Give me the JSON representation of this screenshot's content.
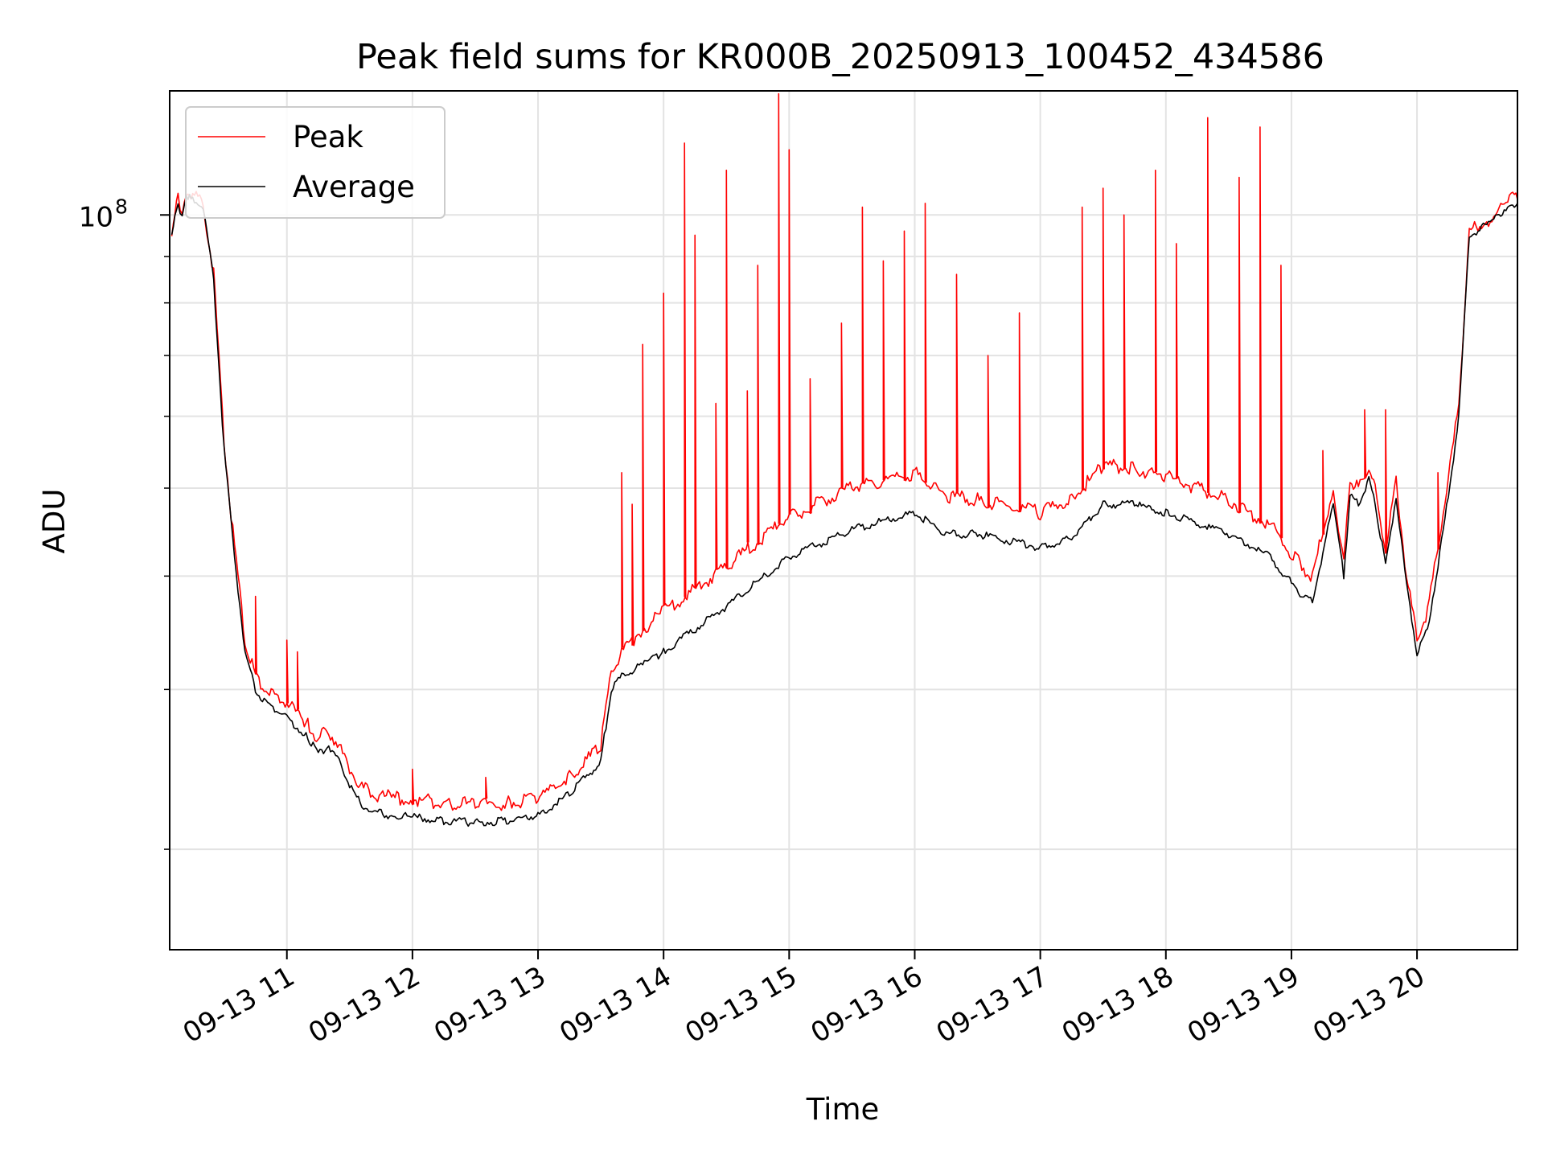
{
  "chart_data": {
    "type": "line",
    "title": "Peak field sums for KR000B_20250913_100452_434586",
    "xlabel": "Time",
    "ylabel": "ADU",
    "x_scale": "time",
    "y_scale": "log",
    "xlim": [
      "2025-09-13 10:04",
      "2025-09-13 20:48"
    ],
    "ylim": [
      15500000,
      137000000
    ],
    "x_tick_labels": [
      "09-13 11",
      "09-13 12",
      "09-13 13",
      "09-13 14",
      "09-13 15",
      "09-13 16",
      "09-13 17",
      "09-13 18",
      "09-13 19",
      "09-13 20"
    ],
    "x_tick_values": [
      "2025-09-13 11:00",
      "2025-09-13 12:00",
      "2025-09-13 13:00",
      "2025-09-13 14:00",
      "2025-09-13 15:00",
      "2025-09-13 16:00",
      "2025-09-13 17:00",
      "2025-09-13 18:00",
      "2025-09-13 19:00",
      "2025-09-13 20:00"
    ],
    "y_major_ticks": [
      {
        "value": 100000000,
        "base": "10",
        "exp": "8"
      }
    ],
    "y_minor_ticks": [
      20000000,
      30000000,
      40000000,
      50000000,
      60000000,
      70000000,
      80000000,
      90000000
    ],
    "grid": true,
    "legend_position": "top-left",
    "colors": {
      "Peak": "#ff0000",
      "Average": "#000000"
    },
    "series": [
      {
        "name": "Average",
        "x": [
          "2025-09-13 10:05",
          "2025-09-13 10:08",
          "2025-09-13 10:10",
          "2025-09-13 10:12",
          "2025-09-13 10:15",
          "2025-09-13 10:20",
          "2025-09-13 10:25",
          "2025-09-13 10:30",
          "2025-09-13 10:35",
          "2025-09-13 10:40",
          "2025-09-13 10:45",
          "2025-09-13 10:50",
          "2025-09-13 10:55",
          "2025-09-13 11:00",
          "2025-09-13 11:10",
          "2025-09-13 11:15",
          "2025-09-13 11:20",
          "2025-09-13 11:25",
          "2025-09-13 11:30",
          "2025-09-13 11:35",
          "2025-09-13 11:40",
          "2025-09-13 11:50",
          "2025-09-13 12:00",
          "2025-09-13 12:15",
          "2025-09-13 12:30",
          "2025-09-13 12:45",
          "2025-09-13 13:00",
          "2025-09-13 13:15",
          "2025-09-13 13:30",
          "2025-09-13 13:35",
          "2025-09-13 13:40",
          "2025-09-13 13:50",
          "2025-09-13 14:00",
          "2025-09-13 14:30",
          "2025-09-13 15:00",
          "2025-09-13 15:30",
          "2025-09-13 16:00",
          "2025-09-13 16:15",
          "2025-09-13 16:30",
          "2025-09-13 17:00",
          "2025-09-13 17:15",
          "2025-09-13 17:30",
          "2025-09-13 17:45",
          "2025-09-13 18:00",
          "2025-09-13 18:30",
          "2025-09-13 18:50",
          "2025-09-13 19:05",
          "2025-09-13 19:10",
          "2025-09-13 19:20",
          "2025-09-13 19:25",
          "2025-09-13 19:28",
          "2025-09-13 19:32",
          "2025-09-13 19:37",
          "2025-09-13 19:40",
          "2025-09-13 19:45",
          "2025-09-13 19:50",
          "2025-09-13 19:55",
          "2025-09-13 20:00",
          "2025-09-13 20:05",
          "2025-09-13 20:10",
          "2025-09-13 20:15",
          "2025-09-13 20:20",
          "2025-09-13 20:25",
          "2025-09-13 20:35",
          "2025-09-13 20:45",
          "2025-09-13 20:48"
        ],
        "values": [
          95000000,
          103000000,
          99000000,
          105000000,
          104000000,
          102000000,
          85000000,
          55000000,
          42000000,
          33000000,
          30000000,
          29000000,
          28500000,
          28000000,
          26500000,
          25500000,
          26000000,
          25000000,
          23500000,
          22500000,
          22000000,
          21800000,
          21700000,
          21500000,
          21400000,
          21500000,
          21800000,
          23000000,
          25000000,
          30000000,
          31000000,
          32000000,
          33000000,
          37000000,
          42000000,
          45000000,
          47000000,
          44500000,
          44500000,
          43000000,
          44000000,
          48000000,
          48000000,
          47000000,
          44500000,
          42000000,
          38000000,
          37500000,
          48000000,
          40000000,
          49000000,
          48000000,
          51000000,
          48000000,
          41000000,
          49000000,
          39000000,
          33000000,
          35000000,
          41000000,
          49000000,
          60000000,
          95000000,
          98000000,
          103000000,
          103000000
        ]
      },
      {
        "name": "Peak",
        "x": [
          "2025-09-13 10:05",
          "2025-09-13 10:08",
          "2025-09-13 10:10",
          "2025-09-13 10:12",
          "2025-09-13 10:15",
          "2025-09-13 10:20",
          "2025-09-13 10:25",
          "2025-09-13 10:30",
          "2025-09-13 10:35",
          "2025-09-13 10:40",
          "2025-09-13 10:45",
          "2025-09-13 10:50",
          "2025-09-13 10:55",
          "2025-09-13 11:00",
          "2025-09-13 11:10",
          "2025-09-13 11:15",
          "2025-09-13 11:20",
          "2025-09-13 11:25",
          "2025-09-13 11:30",
          "2025-09-13 11:35",
          "2025-09-13 11:40",
          "2025-09-13 11:50",
          "2025-09-13 12:00",
          "2025-09-13 12:15",
          "2025-09-13 12:30",
          "2025-09-13 12:45",
          "2025-09-13 13:00",
          "2025-09-13 13:15",
          "2025-09-13 13:30",
          "2025-09-13 13:35",
          "2025-09-13 13:40",
          "2025-09-13 13:50",
          "2025-09-13 14:00",
          "2025-09-13 14:30",
          "2025-09-13 15:00",
          "2025-09-13 15:30",
          "2025-09-13 16:00",
          "2025-09-13 16:15",
          "2025-09-13 16:30",
          "2025-09-13 17:00",
          "2025-09-13 17:15",
          "2025-09-13 17:30",
          "2025-09-13 17:45",
          "2025-09-13 18:00",
          "2025-09-13 18:30",
          "2025-09-13 18:50",
          "2025-09-13 19:05",
          "2025-09-13 19:10",
          "2025-09-13 19:20",
          "2025-09-13 19:25",
          "2025-09-13 19:28",
          "2025-09-13 19:32",
          "2025-09-13 19:37",
          "2025-09-13 19:40",
          "2025-09-13 19:45",
          "2025-09-13 19:50",
          "2025-09-13 19:55",
          "2025-09-13 20:00",
          "2025-09-13 20:05",
          "2025-09-13 20:10",
          "2025-09-13 20:15",
          "2025-09-13 20:20",
          "2025-09-13 20:25",
          "2025-09-13 20:35",
          "2025-09-13 20:45",
          "2025-09-13 20:48"
        ],
        "values": [
          96000000,
          104000000,
          100000000,
          106000000,
          105000000,
          103000000,
          86000000,
          56000000,
          43000000,
          34000000,
          31000000,
          30000000,
          29500000,
          29000000,
          27500000,
          26500000,
          27000000,
          26000000,
          24500000,
          23500000,
          23000000,
          22800000,
          22700000,
          22500000,
          22400000,
          22500000,
          22800000,
          24000000,
          26000000,
          31500000,
          33000000,
          35000000,
          36500000,
          41000000,
          46500000,
          50000000,
          52000000,
          49000000,
          48500000,
          47000000,
          48500000,
          53000000,
          52500000,
          51500000,
          48500000,
          45500000,
          41000000,
          40000000,
          50000000,
          41500000,
          51000000,
          50000000,
          53000000,
          50000000,
          42500000,
          51000000,
          40000000,
          34000000,
          36500000,
          43000000,
          51000000,
          62000000,
          96000000,
          99000000,
          104000000,
          104000000
        ],
        "spikes": [
          {
            "x": "2025-09-13 10:45",
            "value": 38000000
          },
          {
            "x": "2025-09-13 11:00",
            "value": 34000000
          },
          {
            "x": "2025-09-13 11:05",
            "value": 33000000
          },
          {
            "x": "2025-09-13 12:00",
            "value": 24500000
          },
          {
            "x": "2025-09-13 12:35",
            "value": 24000000
          },
          {
            "x": "2025-09-13 13:40",
            "value": 52000000
          },
          {
            "x": "2025-09-13 13:45",
            "value": 48000000
          },
          {
            "x": "2025-09-13 13:50",
            "value": 72000000
          },
          {
            "x": "2025-09-13 14:00",
            "value": 82000000
          },
          {
            "x": "2025-09-13 14:10",
            "value": 120000000
          },
          {
            "x": "2025-09-13 14:15",
            "value": 95000000
          },
          {
            "x": "2025-09-13 14:25",
            "value": 62000000
          },
          {
            "x": "2025-09-13 14:30",
            "value": 112000000
          },
          {
            "x": "2025-09-13 14:40",
            "value": 64000000
          },
          {
            "x": "2025-09-13 14:45",
            "value": 88000000
          },
          {
            "x": "2025-09-13 14:55",
            "value": 136000000
          },
          {
            "x": "2025-09-13 15:00",
            "value": 118000000
          },
          {
            "x": "2025-09-13 15:10",
            "value": 66000000
          },
          {
            "x": "2025-09-13 15:25",
            "value": 76000000
          },
          {
            "x": "2025-09-13 15:35",
            "value": 102000000
          },
          {
            "x": "2025-09-13 15:45",
            "value": 89000000
          },
          {
            "x": "2025-09-13 15:55",
            "value": 96000000
          },
          {
            "x": "2025-09-13 16:05",
            "value": 103000000
          },
          {
            "x": "2025-09-13 16:20",
            "value": 86000000
          },
          {
            "x": "2025-09-13 16:35",
            "value": 70000000
          },
          {
            "x": "2025-09-13 16:50",
            "value": 78000000
          },
          {
            "x": "2025-09-13 17:20",
            "value": 102000000
          },
          {
            "x": "2025-09-13 17:30",
            "value": 107000000
          },
          {
            "x": "2025-09-13 17:40",
            "value": 100000000
          },
          {
            "x": "2025-09-13 17:55",
            "value": 112000000
          },
          {
            "x": "2025-09-13 18:05",
            "value": 93000000
          },
          {
            "x": "2025-09-13 18:20",
            "value": 128000000
          },
          {
            "x": "2025-09-13 18:35",
            "value": 110000000
          },
          {
            "x": "2025-09-13 18:45",
            "value": 125000000
          },
          {
            "x": "2025-09-13 18:55",
            "value": 88000000
          },
          {
            "x": "2025-09-13 19:15",
            "value": 55000000
          },
          {
            "x": "2025-09-13 19:35",
            "value": 61000000
          },
          {
            "x": "2025-09-13 19:45",
            "value": 61000000
          },
          {
            "x": "2025-09-13 20:10",
            "value": 52000000
          }
        ]
      }
    ]
  }
}
